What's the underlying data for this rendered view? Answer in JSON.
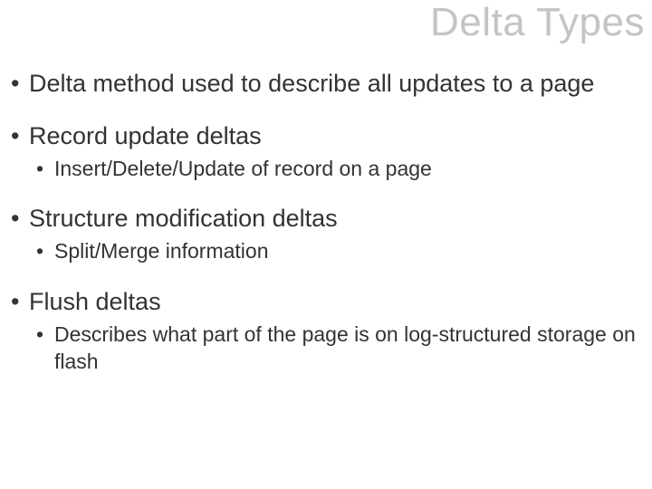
{
  "slide": {
    "title": "Delta Types",
    "title_color": "#c4c4c4",
    "title_fontsize": 44,
    "body_color": "#333333",
    "background_color": "#ffffff",
    "font_family": "Segoe UI Light",
    "bullets": [
      {
        "text": "Delta method used to describe all updates to a page",
        "fontsize": 27,
        "sub": []
      },
      {
        "text": "Record update deltas",
        "fontsize": 27,
        "sub": [
          {
            "text": "Insert/Delete/Update of record on a page",
            "fontsize": 23
          }
        ]
      },
      {
        "text": "Structure modification deltas",
        "fontsize": 27,
        "sub": [
          {
            "text": "Split/Merge information",
            "fontsize": 23
          }
        ]
      },
      {
        "text": "Flush deltas",
        "fontsize": 27,
        "sub": [
          {
            "text": "Describes what part of the page is on log-structured storage on flash",
            "fontsize": 23
          }
        ]
      }
    ]
  }
}
